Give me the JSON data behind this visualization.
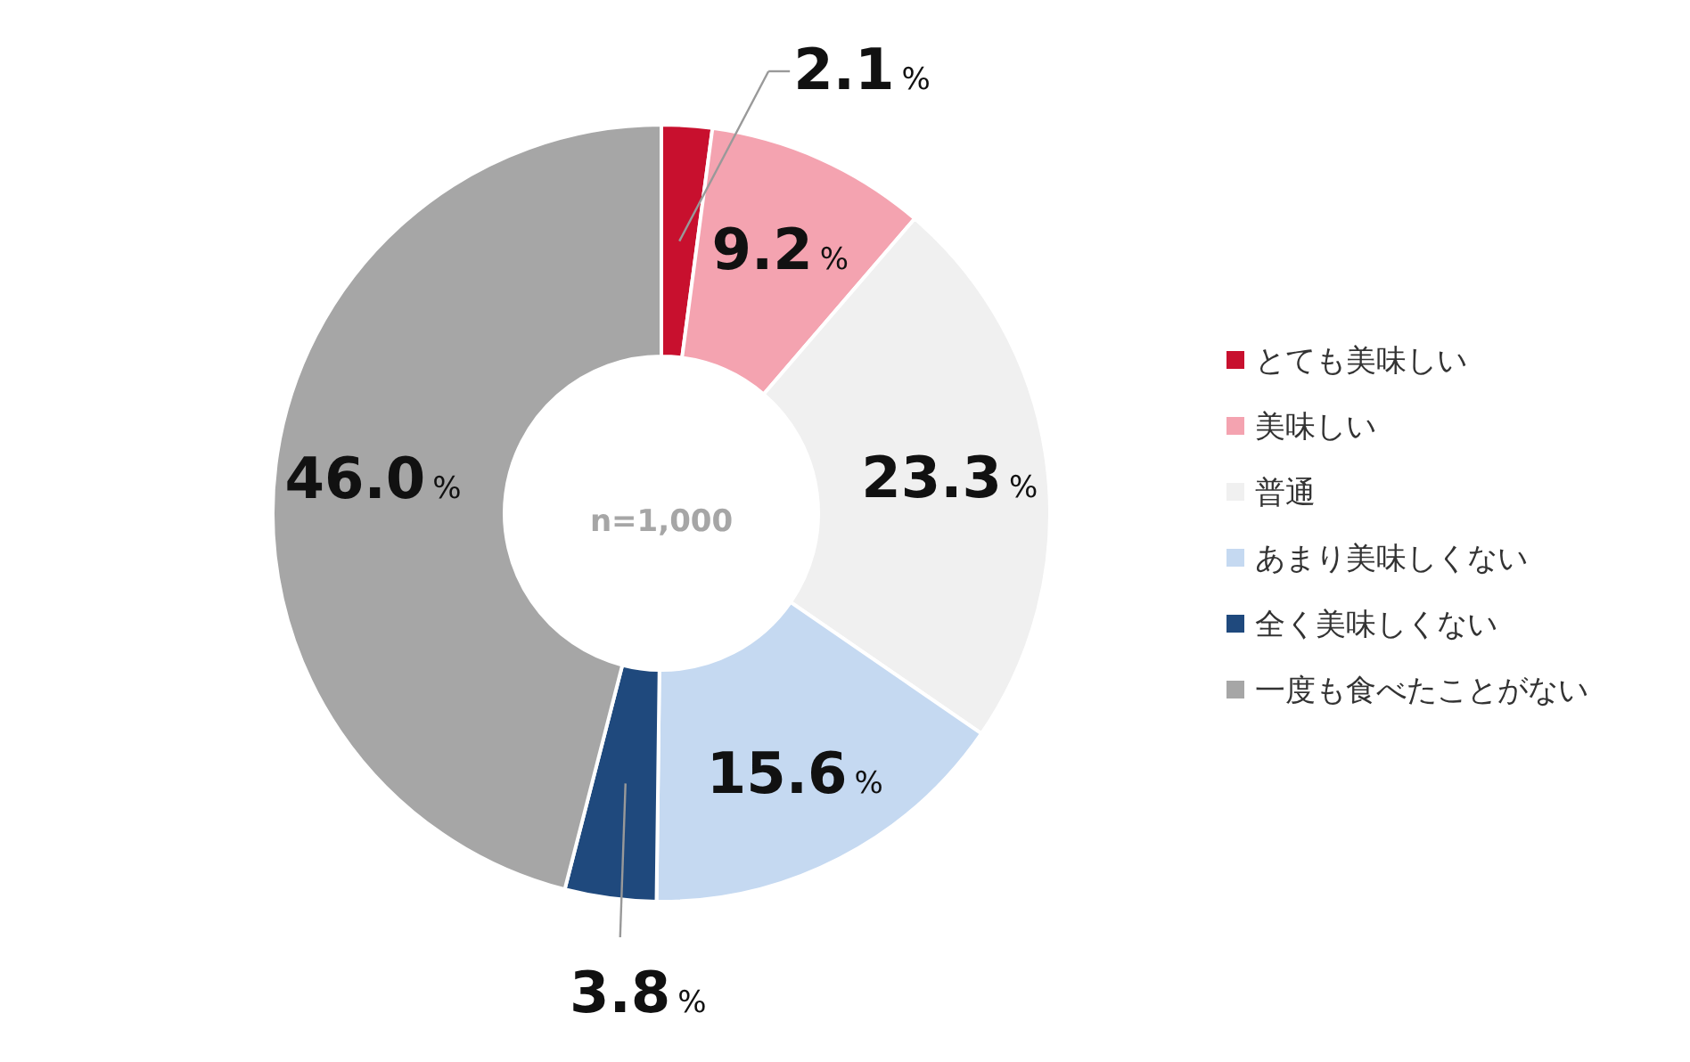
{
  "chart_data": {
    "type": "donut",
    "categories": [
      "とても美味しい",
      "美味しい",
      "普通",
      "あまり美味しくない",
      "全く美味しくない",
      "一度も食べたことがない"
    ],
    "values": [
      2.1,
      9.2,
      23.3,
      15.6,
      3.8,
      46.0
    ],
    "colors": [
      "#c8102e",
      "#f4a3b0",
      "#f0f0f0",
      "#c5d9f1",
      "#1f497d",
      "#a6a6a6"
    ],
    "value_labels": [
      "2.1%",
      "9.2%",
      "23.3%",
      "15.6%",
      "3.8%",
      "46.0%"
    ],
    "legend": "right",
    "annotations": [
      "n=1,000"
    ]
  }
}
